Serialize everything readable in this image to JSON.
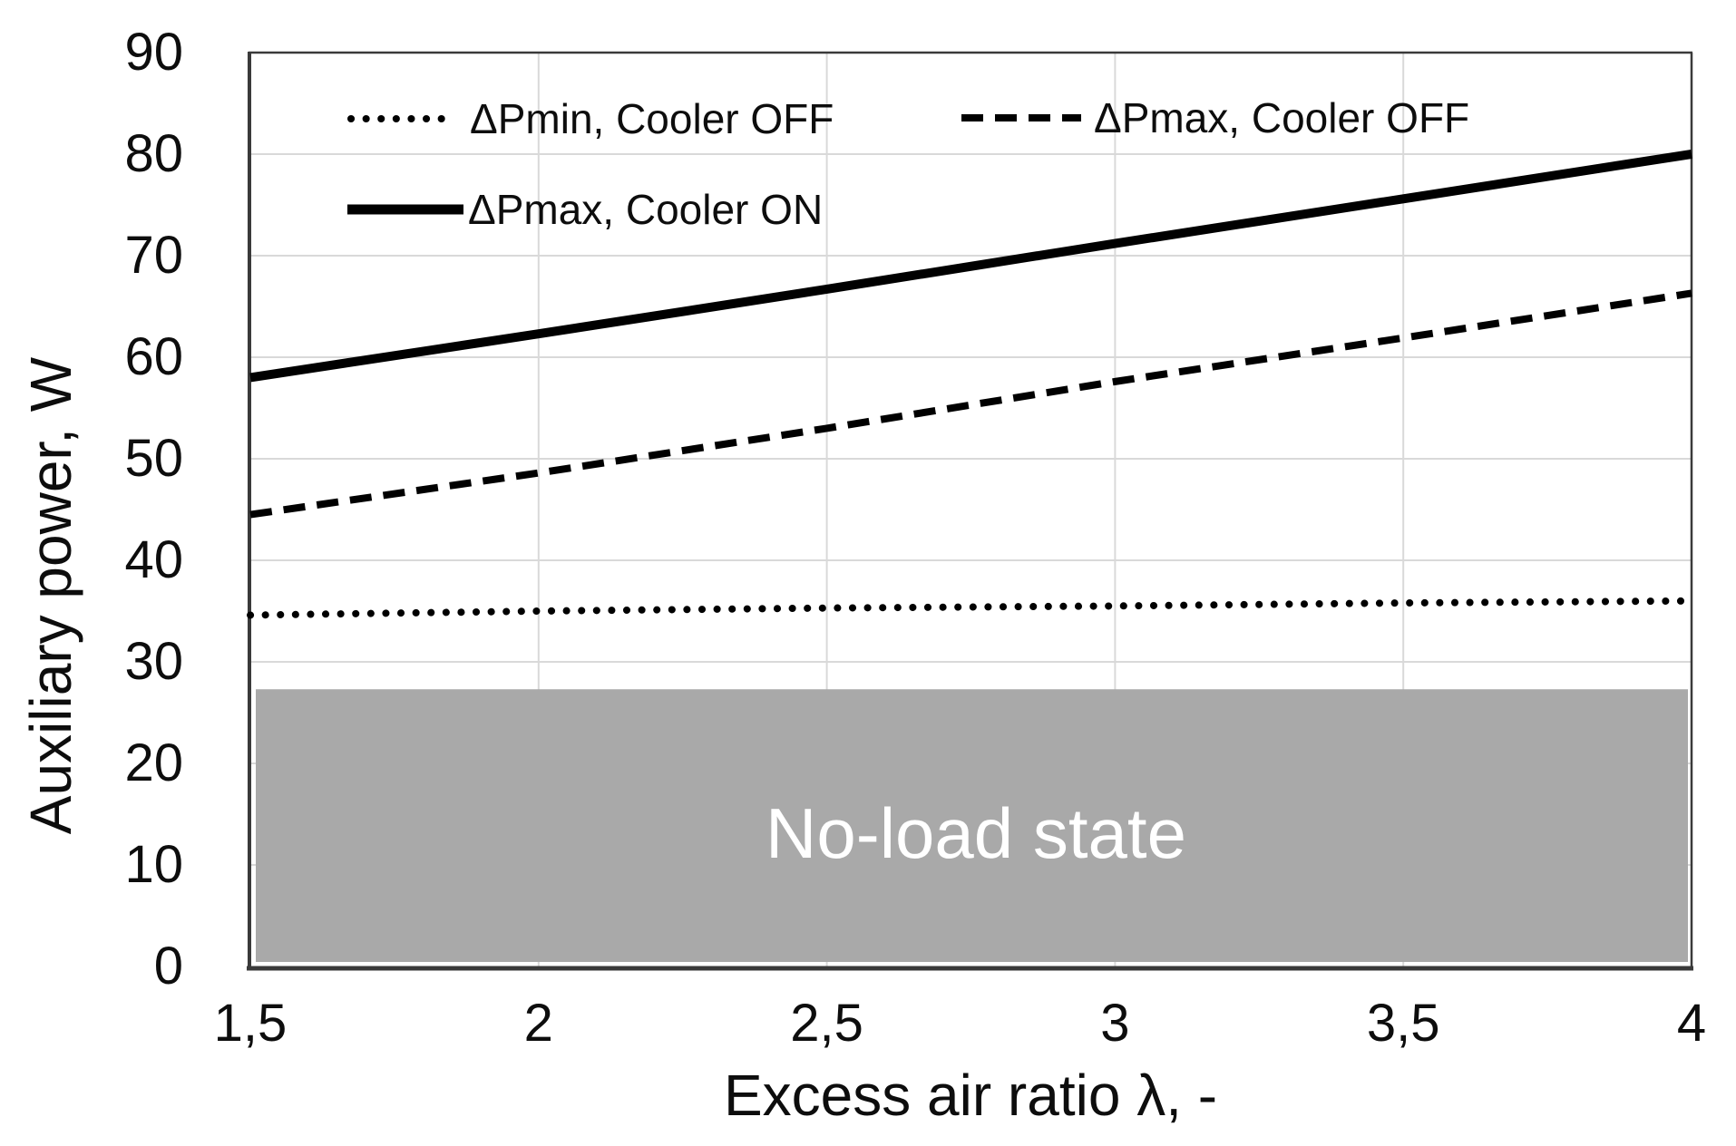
{
  "chart_data": {
    "type": "line",
    "title": "",
    "xlabel": "Excess air ratio λ, -",
    "ylabel": "Auxiliary power, W",
    "xlim": [
      1.5,
      4
    ],
    "ylim": [
      0,
      90
    ],
    "grid": true,
    "legend_position": "top-inside",
    "x": [
      1.5,
      2,
      2.5,
      3,
      3.5,
      4
    ],
    "xtick_labels": [
      "1,5",
      "2",
      "2,5",
      "3",
      "3,5",
      "4"
    ],
    "yticks": [
      0,
      10,
      20,
      30,
      40,
      50,
      60,
      70,
      80,
      90
    ],
    "series": [
      {
        "name": "ΔPmin, Cooler OFF",
        "style": "dotted",
        "values": [
          34.6,
          35.0,
          35.3,
          35.5,
          35.8,
          36.0
        ]
      },
      {
        "name": "ΔPmax, Cooler OFF",
        "style": "dashed",
        "values": [
          44.5,
          48.6,
          53.0,
          57.6,
          61.9,
          66.3
        ]
      },
      {
        "name": "ΔPmax, Cooler ON",
        "style": "solid",
        "values": [
          58.0,
          62.3,
          66.7,
          71.2,
          75.6,
          80.0
        ]
      }
    ],
    "annotation": {
      "label": "No-load state",
      "region": {
        "y_from": 0,
        "y_to": 27.3
      }
    },
    "colors": {
      "line": "#000000",
      "grid": "#d9d9d9",
      "axis": "#3a3a3a",
      "noload_fill": "#a9a9a9",
      "noload_text": "#ffffff",
      "text": "#0d0d0d",
      "background": "#ffffff"
    }
  }
}
